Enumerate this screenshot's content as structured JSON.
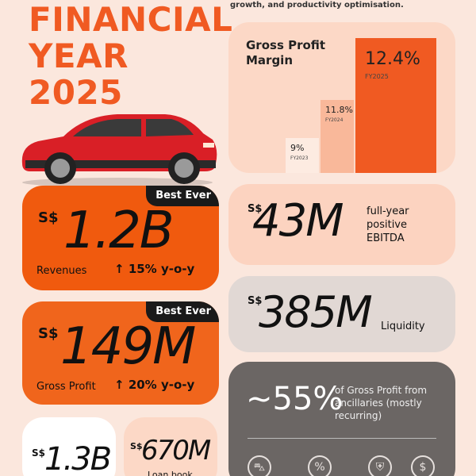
{
  "header": {
    "title_lines": [
      "FINANCIAL",
      "YEAR",
      "2025"
    ],
    "tagline": "growth, and productivity optimisation."
  },
  "gross_profit_margin": {
    "title": "Gross Profit Margin",
    "bars": [
      {
        "value": "9%",
        "year": "FY2023",
        "color": "#fdebe1"
      },
      {
        "value": "11.8%",
        "year": "FY2024",
        "color": "#f9b89a"
      },
      {
        "value": "12.4%",
        "year": "FY2025",
        "color": "#f05a22"
      }
    ]
  },
  "revenues": {
    "badge": "Best Ever",
    "currency": "S$",
    "value": "1.2B",
    "label": "Revenues",
    "growth": "15% y-o-y"
  },
  "gross_profit": {
    "badge": "Best Ever",
    "currency": "S$",
    "value": "149M",
    "label": "Gross Profit",
    "growth": "20% y-o-y"
  },
  "ebitda": {
    "currency": "S$",
    "value": "43M",
    "label": "full-year positive EBITDA"
  },
  "liquidity": {
    "currency": "S$",
    "value": "385M",
    "label": "Liquidity"
  },
  "ancillaries": {
    "value": "~55%",
    "label": "of Gross Profit from ancillaries (mostly recurring)",
    "icons": [
      "car-icon",
      "percent-icon",
      "shield-icon",
      "dollar-icon"
    ]
  },
  "white_card": {
    "currency": "S$",
    "value": "1.3B"
  },
  "loan_book": {
    "currency": "S$",
    "value": "670M",
    "label": "Loan book"
  },
  "colors": {
    "accent": "#f05a22",
    "dark": "#1a1a1a"
  }
}
